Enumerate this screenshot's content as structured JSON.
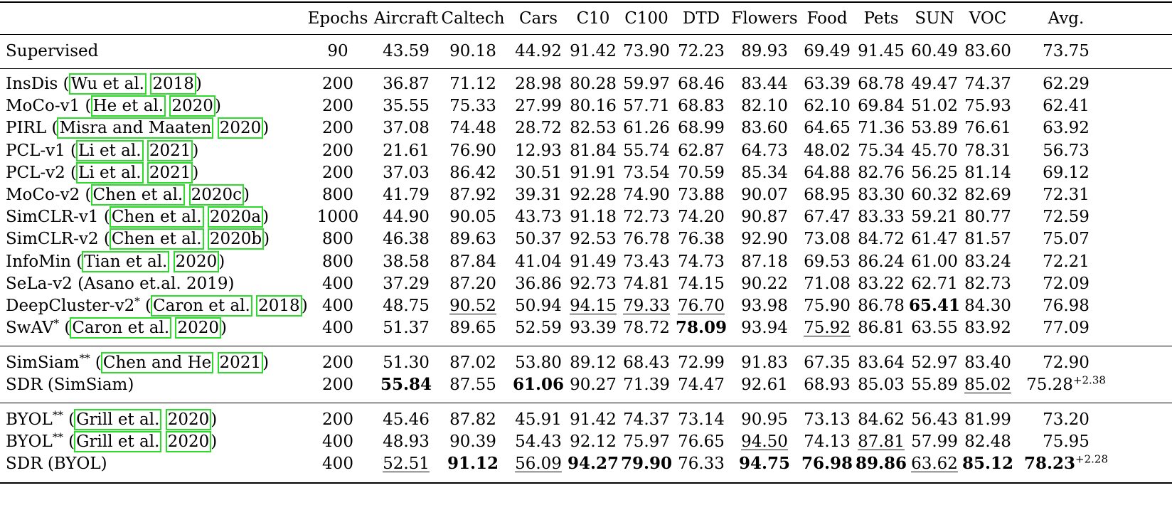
{
  "columns": [
    "Epochs",
    "Aircraft",
    "Caltech",
    "Cars",
    "C10",
    "C100",
    "DTD",
    "Flowers",
    "Food",
    "Pets",
    "SUN",
    "VOC",
    "Avg."
  ],
  "groups": [
    [
      {
        "name": "Supervised",
        "epochs": "90",
        "vals": [
          "43.59",
          "90.18",
          "44.92",
          "91.42",
          "73.90",
          "72.23",
          "89.93",
          "69.49",
          "91.45",
          "60.49",
          "83.60",
          "73.75"
        ]
      }
    ],
    [
      {
        "name": "InsDis",
        "cite": [
          "Wu et al.",
          "2018"
        ],
        "epochs": "200",
        "vals": [
          "36.87",
          "71.12",
          "28.98",
          "80.28",
          "59.97",
          "68.46",
          "83.44",
          "63.39",
          "68.78",
          "49.47",
          "74.37",
          "62.29"
        ]
      },
      {
        "name": "MoCo-v1",
        "cite": [
          "He et al.",
          "2020"
        ],
        "epochs": "200",
        "vals": [
          "35.55",
          "75.33",
          "27.99",
          "80.16",
          "57.71",
          "68.83",
          "82.10",
          "62.10",
          "69.84",
          "51.02",
          "75.93",
          "62.41"
        ]
      },
      {
        "name": "PIRL",
        "cite": [
          "Misra and Maaten",
          "2020"
        ],
        "epochs": "200",
        "vals": [
          "37.08",
          "74.48",
          "28.72",
          "82.53",
          "61.26",
          "68.99",
          "83.60",
          "64.65",
          "71.36",
          "53.89",
          "76.61",
          "63.92"
        ]
      },
      {
        "name": "PCL-v1",
        "cite": [
          "Li et al.",
          "2021"
        ],
        "epochs": "200",
        "vals": [
          "21.61",
          "76.90",
          "12.93",
          "81.84",
          "55.74",
          "62.87",
          "64.73",
          "48.02",
          "75.34",
          "45.70",
          "78.31",
          "56.73"
        ]
      },
      {
        "name": "PCL-v2",
        "cite": [
          "Li et al.",
          "2021"
        ],
        "epochs": "200",
        "vals": [
          "37.03",
          "86.42",
          "30.51",
          "91.91",
          "73.54",
          "70.59",
          "85.34",
          "64.88",
          "82.76",
          "56.25",
          "81.14",
          "69.12"
        ]
      },
      {
        "name": "MoCo-v2",
        "cite": [
          "Chen et al.",
          "2020c"
        ],
        "epochs": "800",
        "vals": [
          "41.79",
          "87.92",
          "39.31",
          "92.28",
          "74.90",
          "73.88",
          "90.07",
          "68.95",
          "83.30",
          "60.32",
          "82.69",
          "72.31"
        ]
      },
      {
        "name": "SimCLR-v1",
        "cite": [
          "Chen et al.",
          "2020a"
        ],
        "epochs": "1000",
        "vals": [
          "44.90",
          "90.05",
          "43.73",
          "91.18",
          "72.73",
          "74.20",
          "90.87",
          "67.47",
          "83.33",
          "59.21",
          "80.77",
          "72.59"
        ]
      },
      {
        "name": "SimCLR-v2",
        "cite": [
          "Chen et al.",
          "2020b"
        ],
        "epochs": "800",
        "vals": [
          "46.38",
          "89.63",
          "50.37",
          "92.53",
          "76.78",
          "76.38",
          "92.90",
          "73.08",
          "84.72",
          "61.47",
          "81.57",
          "75.07"
        ]
      },
      {
        "name": "InfoMin",
        "cite": [
          "Tian et al.",
          "2020"
        ],
        "epochs": "800",
        "vals": [
          "38.58",
          "87.84",
          "41.04",
          "91.49",
          "73.43",
          "74.73",
          "87.18",
          "69.53",
          "86.24",
          "61.00",
          "83.24",
          "72.21"
        ]
      },
      {
        "name": "SeLa-v2 (Asano et.al. 2019)",
        "epochs": "400",
        "vals": [
          "37.29",
          "87.20",
          "36.86",
          "92.73",
          "74.81",
          "74.15",
          "90.22",
          "71.08",
          "83.22",
          "62.71",
          "82.73",
          "72.09"
        ]
      },
      {
        "name": "DeepCluster-v2",
        "sup": "*",
        "cite": [
          "Caron et al.",
          "2018"
        ],
        "epochs": "400",
        "vals": [
          "48.75",
          "90.52",
          "50.94",
          "94.15",
          "79.33",
          "76.70",
          "93.98",
          "75.90",
          "86.78",
          "65.41",
          "84.30",
          "76.98"
        ],
        "ul": [
          1,
          3,
          4,
          5
        ],
        "bd": [
          9
        ]
      },
      {
        "name": "SwAV",
        "sup": "*",
        "cite": [
          "Caron et al.",
          "2020"
        ],
        "epochs": "400",
        "vals": [
          "51.37",
          "89.65",
          "52.59",
          "93.39",
          "78.72",
          "78.09",
          "93.94",
          "75.92",
          "86.81",
          "63.55",
          "83.92",
          "77.09"
        ],
        "ul": [
          7
        ],
        "bd": [
          5
        ]
      }
    ],
    [
      {
        "name": "SimSiam",
        "sup": "**",
        "cite": [
          "Chen and He",
          "2021"
        ],
        "epochs": "200",
        "vals": [
          "51.30",
          "87.02",
          "53.80",
          "89.12",
          "68.43",
          "72.99",
          "91.83",
          "67.35",
          "83.64",
          "52.97",
          "83.40",
          "72.90"
        ]
      },
      {
        "name": "SDR (SimSiam)",
        "epochs": "200",
        "vals": [
          "55.84",
          "87.55",
          "61.06",
          "90.27",
          "71.39",
          "74.47",
          "92.61",
          "68.93",
          "85.03",
          "55.89",
          "85.02",
          "75.28"
        ],
        "avgsup": "+2.38",
        "ul": [
          10
        ],
        "bd": [
          0,
          2
        ]
      }
    ],
    [
      {
        "name": "BYOL",
        "sup": "**",
        "cite": [
          "Grill et al.",
          "2020"
        ],
        "epochs": "200",
        "vals": [
          "45.46",
          "87.82",
          "45.91",
          "91.42",
          "74.37",
          "73.14",
          "90.95",
          "73.13",
          "84.62",
          "56.43",
          "81.99",
          "73.20"
        ]
      },
      {
        "name": "BYOL",
        "sup": "**",
        "cite": [
          "Grill et al.",
          "2020"
        ],
        "epochs": "400",
        "vals": [
          "48.93",
          "90.39",
          "54.43",
          "92.12",
          "75.97",
          "76.65",
          "94.50",
          "74.13",
          "87.81",
          "57.99",
          "82.48",
          "75.95"
        ],
        "ul": [
          6,
          8
        ]
      },
      {
        "name": "SDR (BYOL)",
        "epochs": "400",
        "vals": [
          "52.51",
          "91.12",
          "56.09",
          "94.27",
          "79.90",
          "76.33",
          "94.75",
          "76.98",
          "89.86",
          "63.62",
          "85.12",
          "78.23"
        ],
        "avgsup": "+2.28",
        "ul": [
          0,
          2,
          9
        ],
        "bd": [
          1,
          3,
          4,
          6,
          7,
          8,
          10,
          11
        ]
      }
    ]
  ]
}
